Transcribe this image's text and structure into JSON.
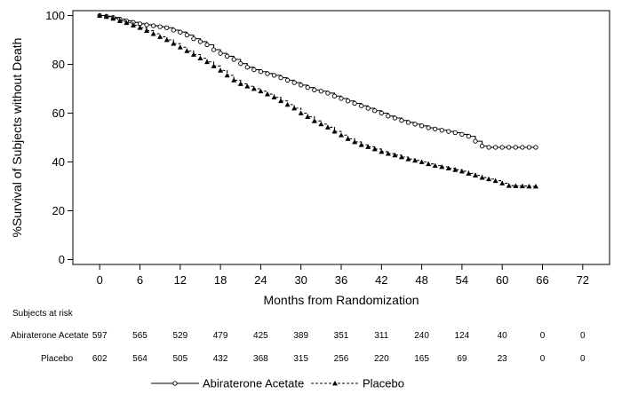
{
  "chart_data": {
    "type": "line",
    "title": "",
    "xlabel": "Months from Randomization",
    "ylabel": "%Survival of Subjects without Death",
    "xlim": [
      -4,
      76
    ],
    "ylim": [
      -2,
      102
    ],
    "xticks": [
      0,
      6,
      12,
      18,
      24,
      30,
      36,
      42,
      48,
      54,
      60,
      66,
      72
    ],
    "yticks": [
      0,
      20,
      40,
      60,
      80,
      100
    ],
    "grid": false,
    "legend_position": "bottom",
    "series": [
      {
        "name": "Abiraterone Acetate",
        "line_style": "solid",
        "marker": "circle",
        "color": "#000000",
        "x": [
          0,
          1,
          2,
          3,
          4,
          5,
          6,
          7,
          8,
          9,
          10,
          11,
          12,
          13,
          14,
          15,
          16,
          17,
          18,
          19,
          20,
          21,
          22,
          23,
          24,
          25,
          26,
          27,
          28,
          29,
          30,
          31,
          32,
          33,
          34,
          35,
          36,
          37,
          38,
          39,
          40,
          41,
          42,
          43,
          44,
          45,
          46,
          47,
          48,
          49,
          50,
          51,
          52,
          53,
          54,
          55,
          56,
          57,
          58,
          59,
          60,
          61,
          62,
          63,
          64,
          65
        ],
        "y": [
          100,
          99.7,
          99.2,
          98.5,
          97.8,
          97.2,
          96.6,
          96.2,
          95.8,
          95.4,
          95.0,
          94.0,
          93.2,
          92.0,
          90.5,
          89.3,
          88.0,
          86.0,
          84.5,
          83.3,
          82.0,
          80.3,
          78.8,
          77.8,
          77.0,
          76.2,
          75.5,
          74.5,
          73.5,
          72.5,
          71.5,
          70.5,
          69.5,
          69.0,
          68.2,
          67.0,
          66.0,
          65.0,
          64.0,
          63.0,
          62.0,
          61.0,
          60.0,
          58.8,
          58.0,
          57.0,
          56.2,
          55.5,
          54.8,
          54.0,
          53.5,
          53.0,
          52.5,
          52.0,
          51.3,
          50.5,
          48.5,
          46.5,
          46.0,
          46.0,
          46.0,
          46.0,
          46.0,
          46.0,
          46.0,
          46.0
        ]
      },
      {
        "name": "Placebo",
        "line_style": "dashed",
        "marker": "triangle",
        "color": "#000000",
        "x": [
          0,
          1,
          2,
          3,
          4,
          5,
          6,
          7,
          8,
          9,
          10,
          11,
          12,
          13,
          14,
          15,
          16,
          17,
          18,
          19,
          20,
          21,
          22,
          23,
          24,
          25,
          26,
          27,
          28,
          29,
          30,
          31,
          32,
          33,
          34,
          35,
          36,
          37,
          38,
          39,
          40,
          41,
          42,
          43,
          44,
          45,
          46,
          47,
          48,
          49,
          50,
          51,
          52,
          53,
          54,
          55,
          56,
          57,
          58,
          59,
          60,
          61,
          62,
          63,
          64,
          65
        ],
        "y": [
          100,
          99.5,
          98.8,
          97.8,
          97.0,
          96.0,
          95.0,
          93.8,
          92.5,
          91.3,
          90.0,
          88.5,
          87.0,
          85.5,
          84.0,
          82.5,
          81.0,
          79.3,
          77.5,
          75.5,
          73.5,
          72.0,
          71.0,
          70.0,
          69.0,
          67.8,
          66.5,
          65.0,
          63.5,
          62.0,
          60.0,
          58.5,
          56.8,
          55.5,
          54.2,
          52.5,
          51.0,
          49.5,
          48.2,
          47.0,
          46.2,
          45.3,
          44.2,
          43.4,
          42.8,
          42.0,
          41.2,
          40.6,
          40.0,
          39.2,
          38.5,
          38.0,
          37.4,
          36.8,
          36.2,
          35.3,
          34.5,
          33.6,
          33.0,
          32.3,
          31.3,
          30.3,
          30.2,
          30.1,
          30.0,
          30.0
        ]
      }
    ],
    "at_risk": {
      "title": "Subjects at risk",
      "times": [
        0,
        6,
        12,
        18,
        24,
        30,
        36,
        42,
        48,
        54,
        60,
        66,
        72
      ],
      "rows": [
        {
          "name": "Abiraterone Acetate",
          "counts": [
            597,
            565,
            529,
            479,
            425,
            389,
            351,
            311,
            240,
            124,
            40,
            0,
            0
          ]
        },
        {
          "name": "Placebo",
          "counts": [
            602,
            564,
            505,
            432,
            368,
            315,
            256,
            220,
            165,
            69,
            23,
            0,
            0
          ]
        }
      ]
    }
  }
}
